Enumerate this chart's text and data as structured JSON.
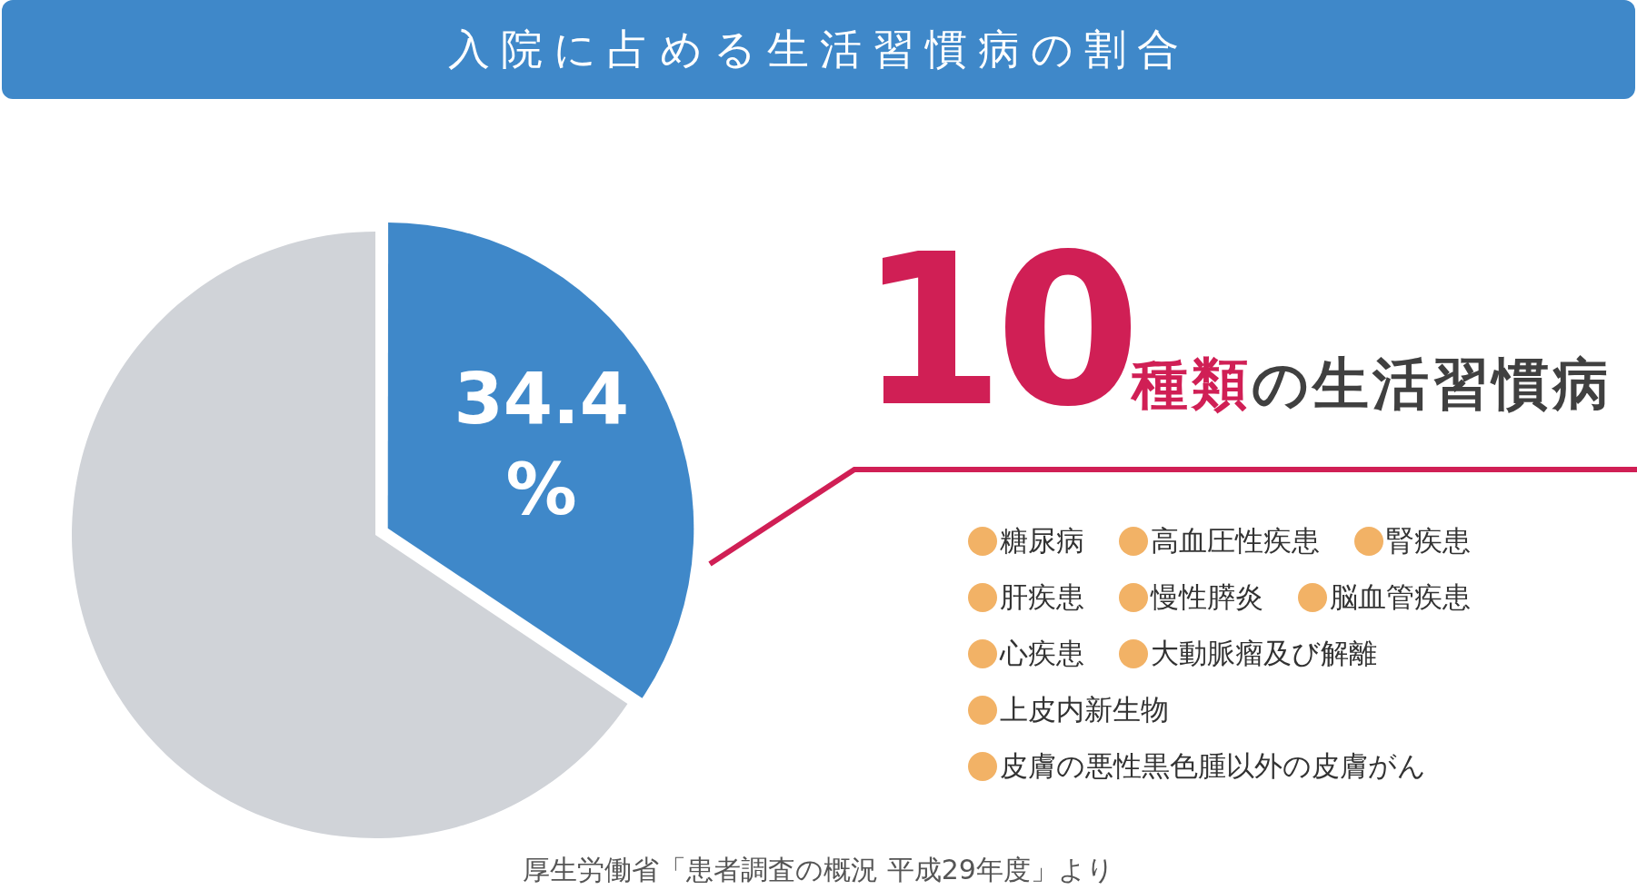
{
  "chart_data": {
    "type": "pie",
    "title": "入院に占める生活習慣病の割合",
    "categories": [
      null,
      null
    ],
    "values": [
      34.4,
      65.6
    ],
    "colors": [
      "#3f88c9",
      "#d0d3d8"
    ],
    "value_labels": [
      "34.4%",
      null
    ],
    "annotations": [
      "10種類の生活習慣病",
      "糖尿病",
      "高血圧性疾患",
      "腎疾患",
      "肝疾患",
      "慢性膵炎",
      "脳血管疾患",
      "心疾患",
      "大動脈瘤及び解離",
      "上皮内新生物",
      "皮膚の悪性黒色腫以外の皮膚がん",
      "厚生労働省「患者調査の概況 平成29年度」より"
    ]
  }
}
